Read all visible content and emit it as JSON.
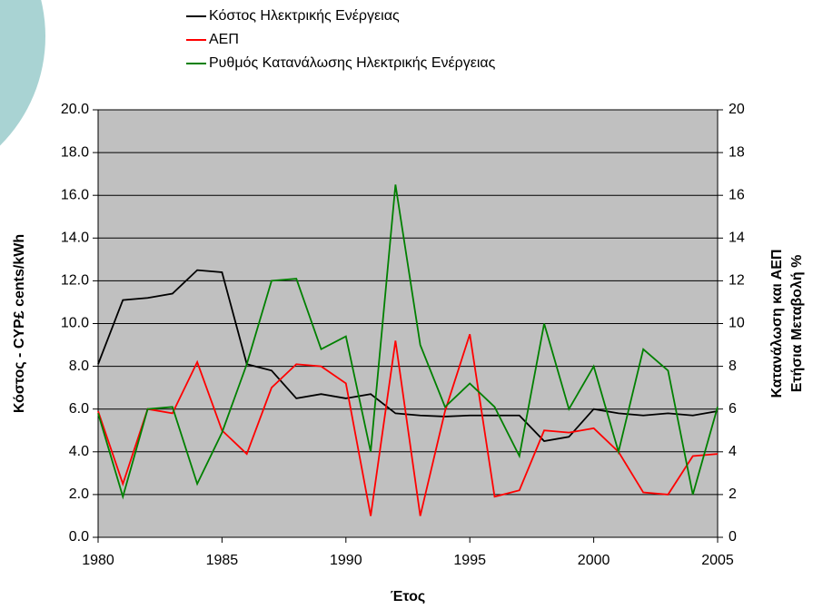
{
  "chart_data": {
    "type": "line",
    "x": [
      1980,
      1981,
      1982,
      1983,
      1984,
      1985,
      1986,
      1987,
      1988,
      1989,
      1990,
      1991,
      1992,
      1993,
      1994,
      1995,
      1996,
      1997,
      1998,
      1999,
      2000,
      2001,
      2002,
      2003,
      2004,
      2005
    ],
    "series": [
      {
        "name": "Κόστος Ηλεκτρικής Ενέργειας",
        "color": "#000000",
        "axis": "y",
        "values": [
          8.1,
          11.1,
          11.2,
          11.4,
          12.5,
          12.4,
          8.1,
          7.8,
          6.5,
          6.7,
          6.5,
          6.7,
          5.8,
          5.7,
          5.65,
          5.7,
          5.7,
          5.7,
          4.5,
          4.7,
          6.0,
          5.8,
          5.7,
          5.8,
          5.7,
          5.9
        ]
      },
      {
        "name": "ΑΕΠ",
        "color": "#ff0000",
        "axis": "y2",
        "values": [
          5.9,
          2.5,
          6.0,
          5.8,
          8.2,
          5.0,
          3.9,
          7.0,
          8.1,
          8.0,
          7.2,
          1.0,
          9.2,
          1.0,
          5.9,
          9.5,
          1.9,
          2.2,
          5.0,
          4.9,
          5.1,
          4.0,
          2.1,
          2.0,
          3.8,
          3.9
        ]
      },
      {
        "name": "Ρυθμός Κατανάλωσης Ηλεκτρικής Ενέργειας",
        "color": "#008000",
        "axis": "y2",
        "values": [
          5.8,
          1.9,
          6.0,
          6.1,
          2.5,
          4.9,
          8.1,
          12.0,
          12.1,
          8.8,
          9.4,
          4.0,
          16.5,
          9.0,
          6.1,
          7.2,
          6.1,
          3.8,
          10.0,
          6.0,
          8.0,
          4.0,
          8.8,
          7.8,
          2.0,
          6.1
        ]
      }
    ],
    "xlabel": "Έτος",
    "ylabel": "Κόστος - CYP£ cents/kWh",
    "y2label": [
      "Κατανάλωση και ΑΕΠ",
      "Ετήσια Μεταβολή %"
    ],
    "xlim": [
      1980,
      2005
    ],
    "xticks": [
      1980,
      1985,
      1990,
      1995,
      2000,
      2005
    ],
    "ylim": [
      0,
      20
    ],
    "yticks": [
      {
        "value": 0,
        "label": "0.0"
      },
      {
        "value": 2,
        "label": "2.0"
      },
      {
        "value": 4,
        "label": "4.0"
      },
      {
        "value": 6,
        "label": "6.0"
      },
      {
        "value": 8,
        "label": "8.0"
      },
      {
        "value": 10,
        "label": "10.0"
      },
      {
        "value": 12,
        "label": "12.0"
      },
      {
        "value": 14,
        "label": "14.0"
      },
      {
        "value": 16,
        "label": "16.0"
      },
      {
        "value": 18,
        "label": "18.0"
      },
      {
        "value": 20,
        "label": "20.0"
      }
    ],
    "y2lim": [
      0,
      20
    ],
    "y2ticks": [
      0,
      2,
      4,
      6,
      8,
      10,
      12,
      14,
      16,
      18,
      20
    ],
    "grid": true,
    "legend": "top",
    "plot_background": "#c0c0c0"
  }
}
